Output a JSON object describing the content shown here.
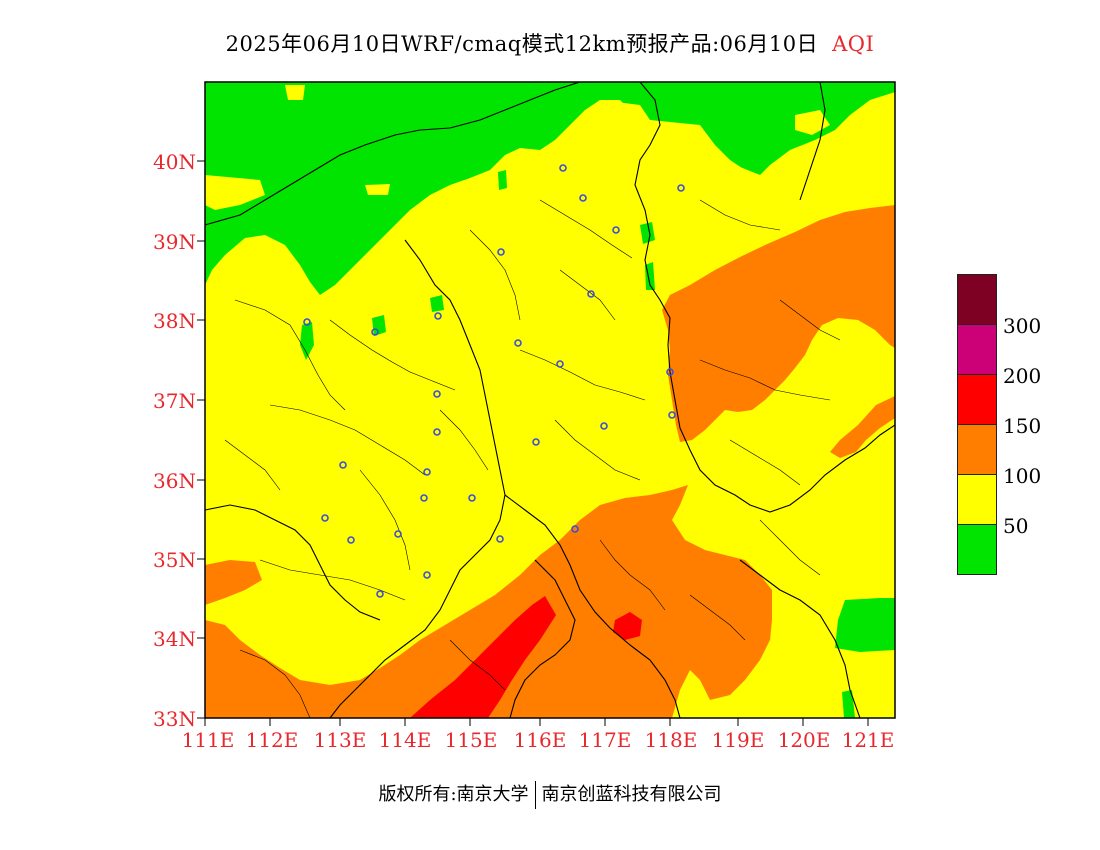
{
  "title": {
    "text": "2025年06月10日WRF/cmaq模式12km预报产品:06月10日",
    "field": "AQI"
  },
  "map": {
    "lat_labels": [
      "40N",
      "39N",
      "38N",
      "37N",
      "36N",
      "35N",
      "34N",
      "33N"
    ],
    "lon_labels": [
      "111E",
      "112E",
      "113E",
      "114E",
      "115E",
      "116E",
      "117E",
      "118E",
      "119E",
      "120E",
      "121E"
    ],
    "colors": {
      "green": "#00e400",
      "yellow": "#ffff00",
      "orange": "#ff7e00",
      "red": "#ff0000",
      "purple": "#cc0077",
      "maroon": "#7e0023",
      "boundary": "#000000",
      "station": "#3b4fd6"
    }
  },
  "legend": {
    "labels": [
      "300",
      "200",
      "150",
      "100",
      "50"
    ],
    "swatches": [
      {
        "name": "maroon",
        "color": "#7e0023"
      },
      {
        "name": "purple",
        "color": "#cc0077"
      },
      {
        "name": "red",
        "color": "#ff0000"
      },
      {
        "name": "orange",
        "color": "#ff7e00"
      },
      {
        "name": "yellow",
        "color": "#ffff00"
      },
      {
        "name": "green",
        "color": "#00e400"
      }
    ]
  },
  "footer": {
    "copyright": "版权所有:南京大学",
    "company": "南京创蓝科技有限公司"
  }
}
